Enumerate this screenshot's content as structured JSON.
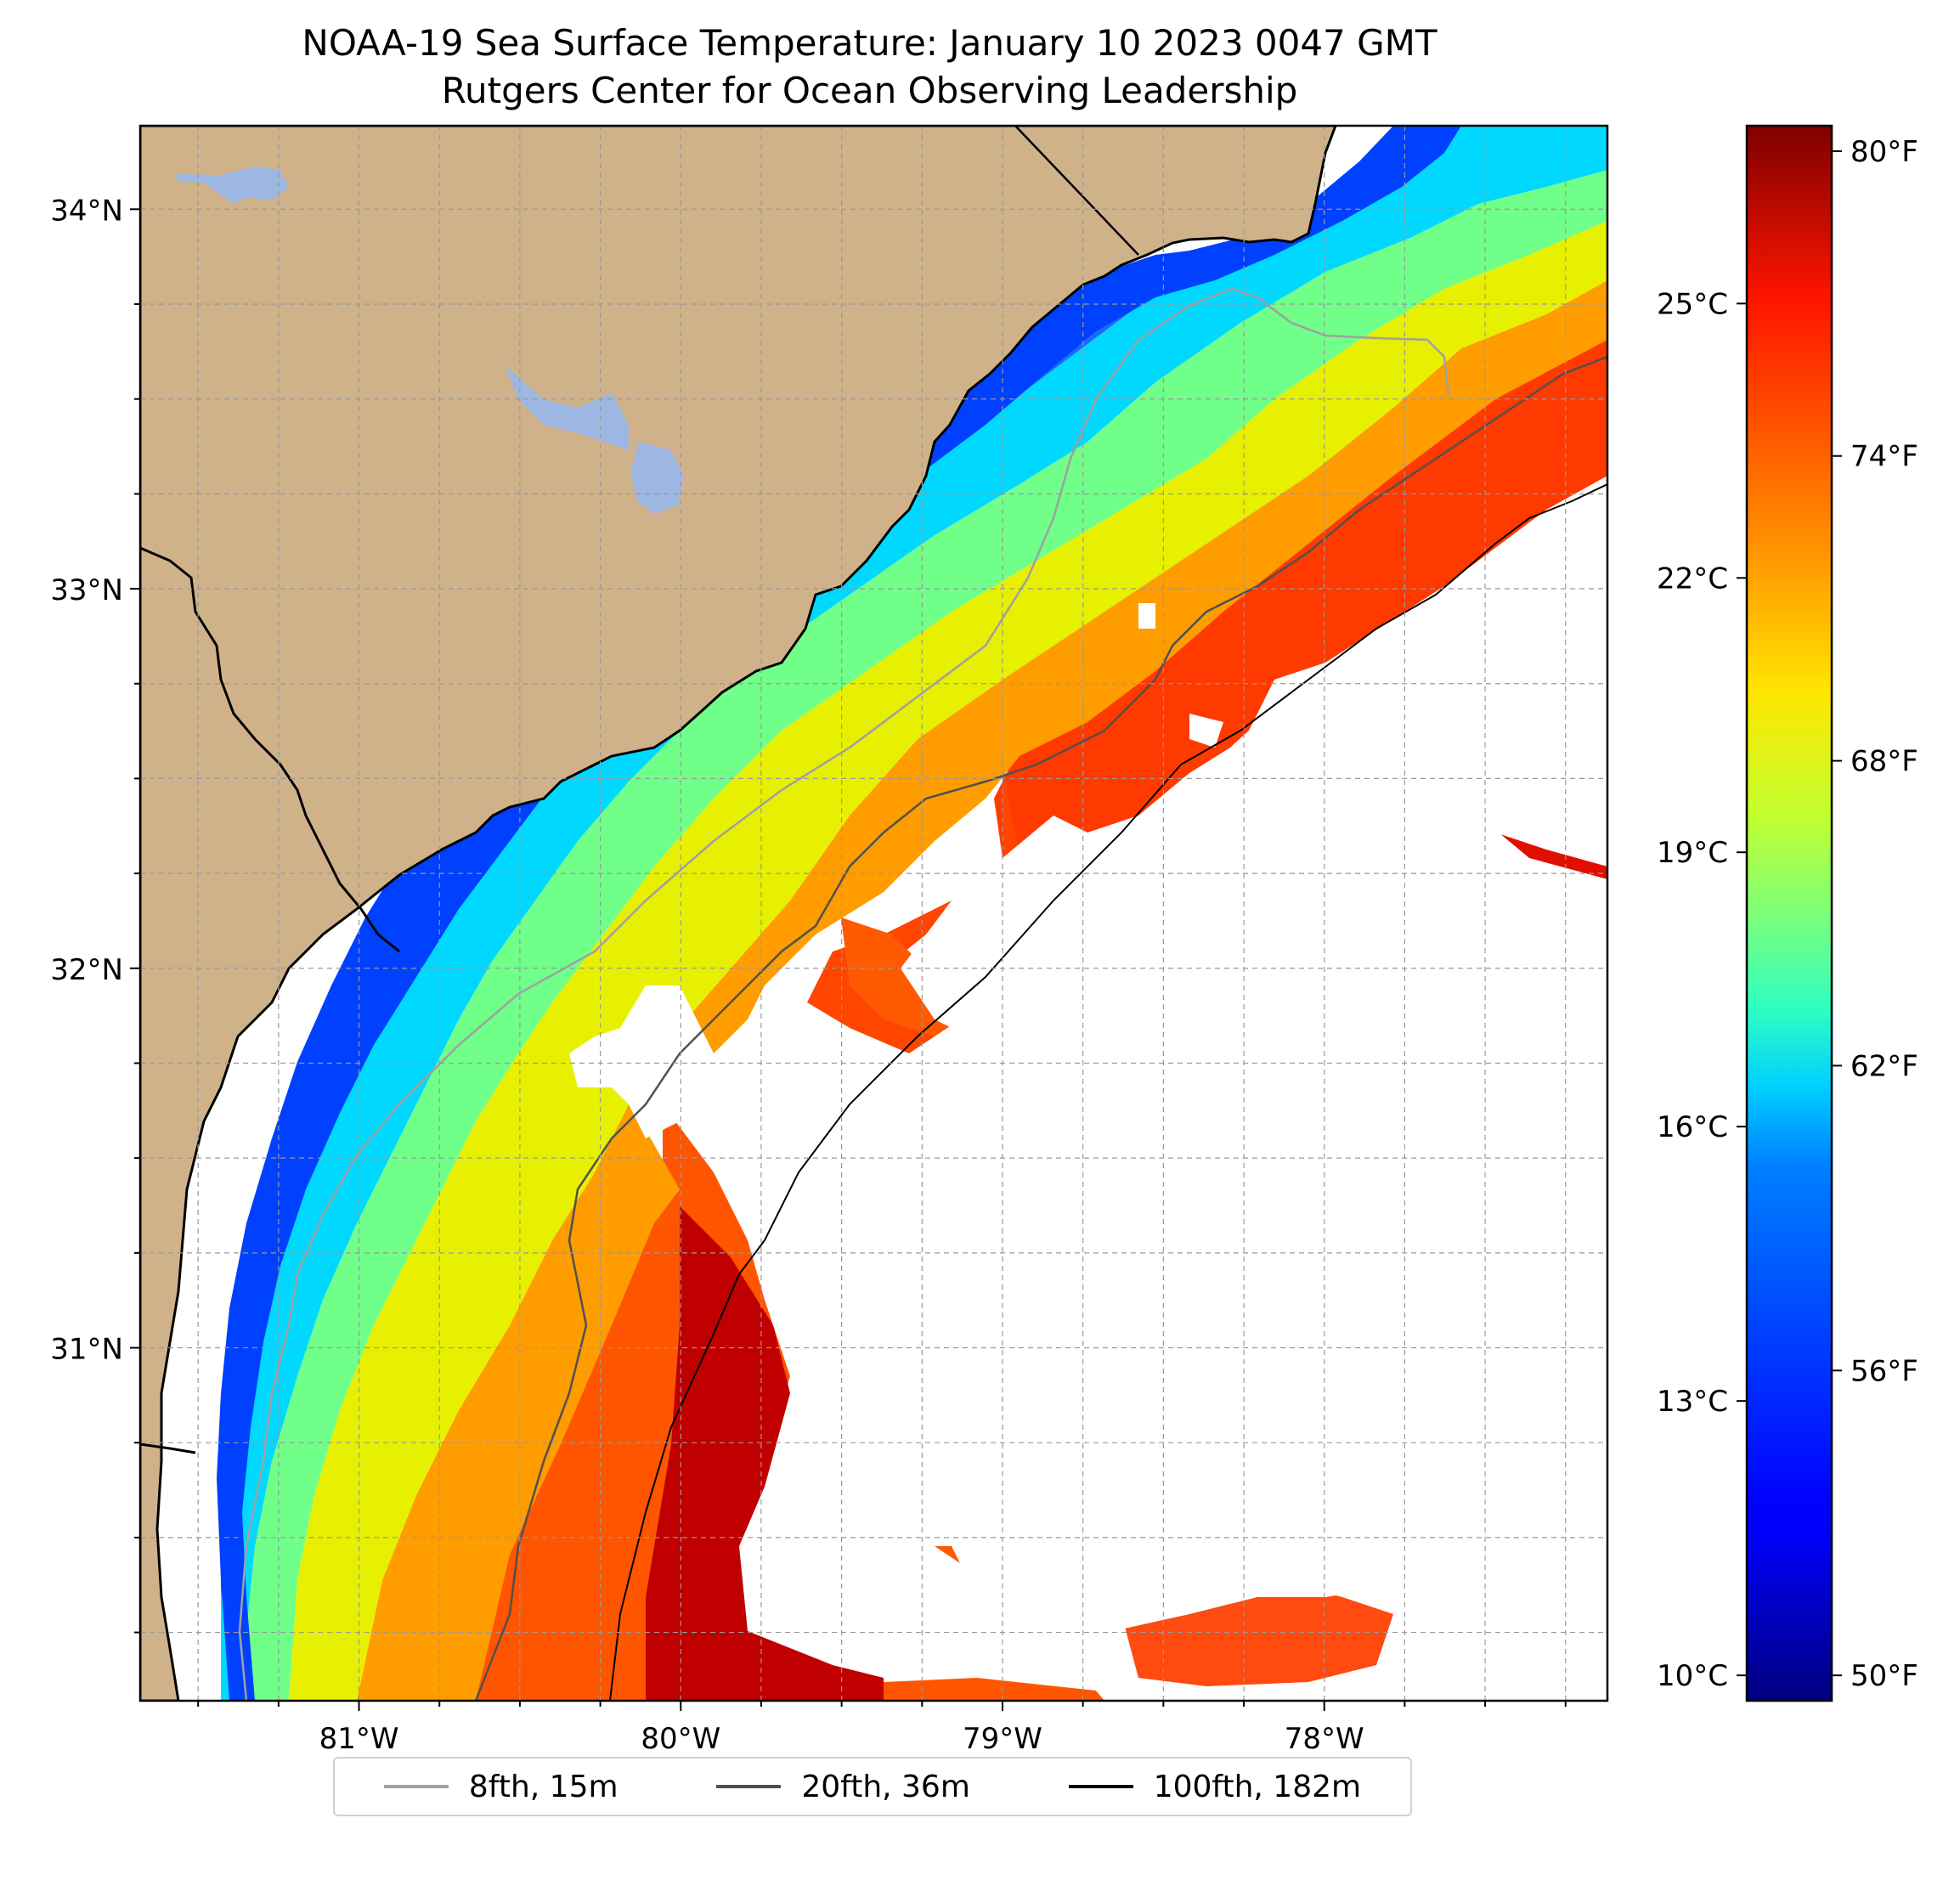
{
  "title": "NOAA-19 Sea Surface Temperature: January 10 2023 0047 GMT",
  "subtitle": "Rutgers Center for Ocean Observing Leadership",
  "map": {
    "lon_range": [
      -81.68,
      -77.12
    ],
    "lat_range": [
      30.07,
      34.22
    ],
    "lat_ticks": [
      {
        "value": 34,
        "label": "34°N"
      },
      {
        "value": 33,
        "label": "33°N"
      },
      {
        "value": 32,
        "label": "32°N"
      },
      {
        "value": 31,
        "label": "31°N"
      }
    ],
    "lon_ticks": [
      {
        "value": -81,
        "label": "81°W"
      },
      {
        "value": -80,
        "label": "80°W"
      },
      {
        "value": -79,
        "label": "79°W"
      },
      {
        "value": -78,
        "label": "78°W"
      }
    ],
    "gridlines": true,
    "land_color": "#CFB28A",
    "lake_color": "#9DB7E2",
    "cloud_mask_color": "#FFFFFF"
  },
  "colorbar": {
    "palette": "jet",
    "celsius_ticks": [
      {
        "value": 10,
        "label": "10°C"
      },
      {
        "value": 13,
        "label": "13°C"
      },
      {
        "value": 16,
        "label": "16°C"
      },
      {
        "value": 19,
        "label": "19°C"
      },
      {
        "value": 22,
        "label": "22°C"
      },
      {
        "value": 25,
        "label": "25°C"
      }
    ],
    "fahrenheit_ticks": [
      {
        "value": 50,
        "label": "50°F"
      },
      {
        "value": 56,
        "label": "56°F"
      },
      {
        "value": 62,
        "label": "62°F"
      },
      {
        "value": 68,
        "label": "68°F"
      },
      {
        "value": 74,
        "label": "74°F"
      },
      {
        "value": 80,
        "label": "80°F"
      }
    ],
    "range_f": [
      49.5,
      80.5
    ]
  },
  "legend": {
    "position": "bottom-center",
    "items": [
      {
        "label": "8fth, 15m",
        "color": "#A0A0A0"
      },
      {
        "label": "20fth, 36m",
        "color": "#505050"
      },
      {
        "label": "100fth, 182m",
        "color": "#000000"
      }
    ]
  }
}
